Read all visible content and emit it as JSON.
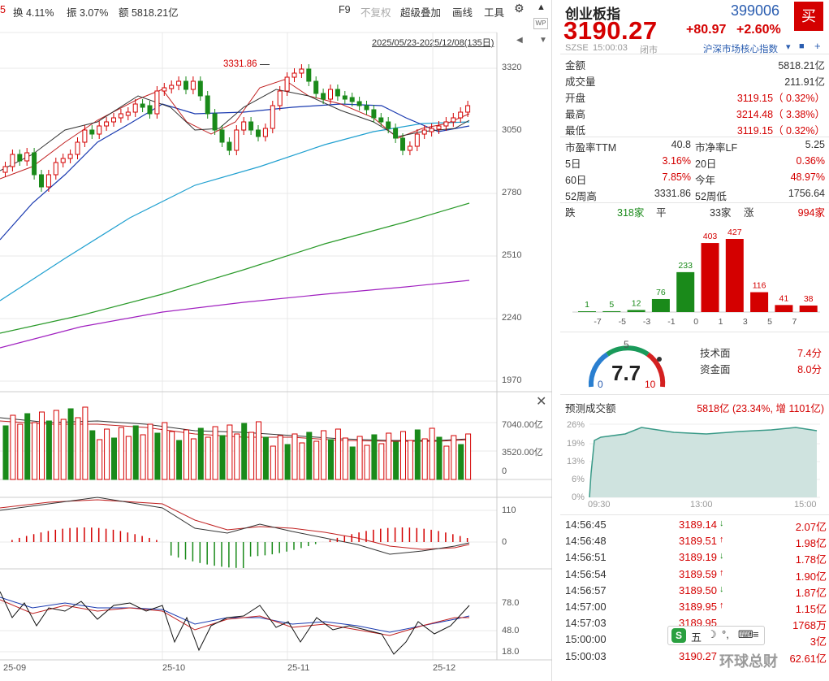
{
  "toolbar": {
    "partial_left": "5",
    "turnover_label": "换 4.11%",
    "amplitude_label": "振 3.07%",
    "amount_label": "额 5818.21亿",
    "f9": "F9",
    "no_adjust": "不复权",
    "overlay": "超级叠加",
    "draw_line": "画线",
    "tools": "工具",
    "date_range": "2025/05/23-2025/12/08(135日)"
  },
  "price_axis": [
    "3320",
    "3050",
    "2780",
    "2510",
    "2240",
    "1970"
  ],
  "peak_label": "3331.86",
  "volume_axis": [
    "7040.00亿",
    "3520.00亿",
    "0"
  ],
  "macd_axis": [
    "110",
    "0"
  ],
  "kdj_axis": [
    "78.0",
    "48.0",
    "18.0"
  ],
  "x_axis": [
    "25-09",
    "25-10",
    "25-11",
    "25-12"
  ],
  "quote": {
    "name": "创业板指",
    "code": "399006",
    "buy": "买",
    "price": "3190.27",
    "change": "+80.97",
    "change_pct": "+2.60%",
    "market": "SZSE",
    "time": "15:00:03",
    "status": "闭市",
    "index_link": "沪深市场核心指数"
  },
  "stats": {
    "amount": {
      "label": "金额",
      "value": "5818.21亿"
    },
    "volume": {
      "label": "成交量",
      "value": "211.91亿"
    },
    "open": {
      "label": "开盘",
      "value": "3119.15（ 0.32%）"
    },
    "high": {
      "label": "最高",
      "value": "3214.48（ 3.38%）"
    },
    "low": {
      "label": "最低",
      "value": "3119.15（ 0.32%）"
    },
    "pe": {
      "label": "市盈率TTM",
      "value": "40.8"
    },
    "pb": {
      "label": "市净率LF",
      "value": "5.25"
    },
    "d5": {
      "label": "5日",
      "value": "3.16%"
    },
    "d20": {
      "label": "20日",
      "value": "0.36%"
    },
    "d60": {
      "label": "60日",
      "value": "7.85%"
    },
    "ytd": {
      "label": "今年",
      "value": "48.97%"
    },
    "w52h": {
      "label": "52周高",
      "value": "3331.86"
    },
    "w52l": {
      "label": "52周低",
      "value": "1756.64"
    }
  },
  "breadth": {
    "down_label": "跌",
    "down": "318家",
    "flat_label": "平",
    "flat": "33家",
    "up_label": "涨",
    "up": "994家"
  },
  "distribution": {
    "bins": [
      "-7",
      "-5",
      "-3",
      "-1",
      "0",
      "1",
      "3",
      "5",
      "7"
    ],
    "counts": [
      1,
      5,
      12,
      76,
      233,
      403,
      427,
      116,
      41,
      38
    ]
  },
  "gauge": {
    "score": "7.7",
    "min": "0",
    "mid": "5",
    "max": "10",
    "tech_label": "技术面",
    "tech": "7.4分",
    "fund_label": "资金面",
    "fund": "8.0分"
  },
  "forecast": {
    "label": "预测成交额",
    "value": "5818亿 (23.34%, 增 1101亿)",
    "y_axis": [
      "26%",
      "19%",
      "13%",
      "6%",
      "0%"
    ],
    "x_axis": [
      "09:30",
      "13:00",
      "15:00"
    ]
  },
  "trades": [
    {
      "time": "14:56:45",
      "price": "3189.14",
      "dir": "down",
      "vol": "2.07亿"
    },
    {
      "time": "14:56:48",
      "price": "3189.51",
      "dir": "up",
      "vol": "1.98亿"
    },
    {
      "time": "14:56:51",
      "price": "3189.19",
      "dir": "down",
      "vol": "1.78亿"
    },
    {
      "time": "14:56:54",
      "price": "3189.59",
      "dir": "up",
      "vol": "1.90亿"
    },
    {
      "time": "14:56:57",
      "price": "3189.50",
      "dir": "down",
      "vol": "1.87亿"
    },
    {
      "time": "14:57:00",
      "price": "3189.95",
      "dir": "up",
      "vol": "1.15亿"
    },
    {
      "time": "14:57:03",
      "price": "3189.95",
      "dir": "",
      "vol": "1768万"
    },
    {
      "time": "15:00:00",
      "price": "",
      "dir": "",
      "vol": "3亿"
    },
    {
      "time": "15:00:03",
      "price": "3190.27",
      "dir": "",
      "vol": "62.61亿"
    }
  ],
  "watermark": "环球总财",
  "ime": {
    "mode": "五"
  },
  "colors": {
    "up": "#d40000",
    "down": "#1a8a1a",
    "accent": "#2a5db0"
  }
}
